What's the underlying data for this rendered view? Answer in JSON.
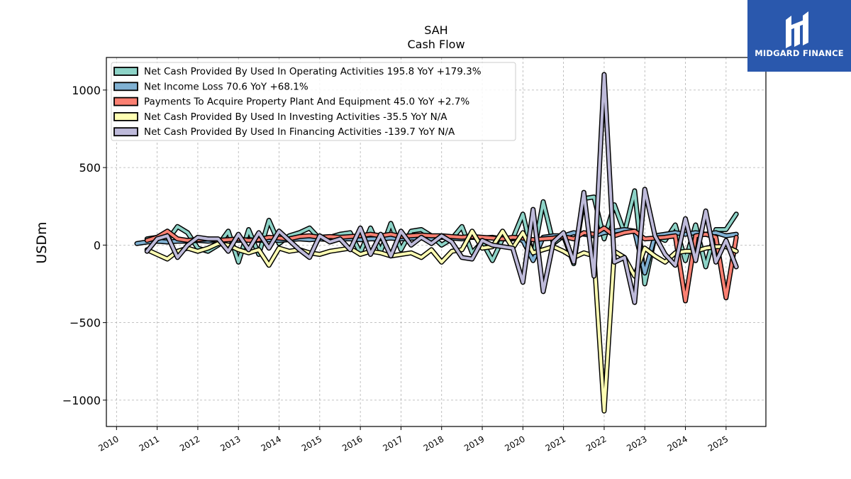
{
  "logo": {
    "text": "MIDGARD FINANCE",
    "color": "#2a58ad"
  },
  "chart_data": {
    "type": "line",
    "title": "SAH",
    "subtitle": "Cash Flow",
    "ylabel": "USDm",
    "xlabel": "",
    "xlim": [
      2009.75,
      2025.98
    ],
    "ylim": [
      -1170,
      1210
    ],
    "yticks": [
      -1000,
      -500,
      0,
      500,
      1000
    ],
    "ytick_labels": [
      "−1000",
      "−500",
      "0",
      "500",
      "1000"
    ],
    "xticks": [
      2010,
      2011,
      2012,
      2013,
      2014,
      2015,
      2016,
      2017,
      2018,
      2019,
      2020,
      2021,
      2022,
      2023,
      2024,
      2025
    ],
    "grid": true,
    "legend_position": "upper-left",
    "series": [
      {
        "name": "Net Cash Provided By Used In Operating Activities  195.8 YoY +179.3%",
        "color": "#8dd3c7",
        "x": [
          2010.75,
          2011.0,
          2011.25,
          2011.5,
          2011.75,
          2012.0,
          2012.25,
          2012.5,
          2012.75,
          2013.0,
          2013.25,
          2013.5,
          2013.75,
          2014.0,
          2014.25,
          2014.5,
          2014.75,
          2015.0,
          2015.25,
          2015.5,
          2015.75,
          2016.0,
          2016.25,
          2016.5,
          2016.75,
          2017.0,
          2017.25,
          2017.5,
          2017.75,
          2018.0,
          2018.25,
          2018.5,
          2018.75,
          2019.0,
          2019.25,
          2019.5,
          2019.75,
          2020.0,
          2020.25,
          2020.5,
          2020.75,
          2021.0,
          2021.25,
          2021.5,
          2021.75,
          2022.0,
          2022.25,
          2022.5,
          2022.75,
          2023.0,
          2023.25,
          2023.5,
          2023.75,
          2024.0,
          2024.25,
          2024.5,
          2024.75,
          2025.0,
          2025.25
        ],
        "y": [
          40,
          50,
          30,
          120,
          80,
          -20,
          -40,
          0,
          90,
          -110,
          100,
          -60,
          160,
          10,
          60,
          80,
          110,
          40,
          50,
          70,
          80,
          -50,
          110,
          -40,
          140,
          -30,
          90,
          100,
          60,
          0,
          40,
          120,
          -50,
          20,
          -100,
          40,
          40,
          200,
          -80,
          280,
          10,
          60,
          -120,
          300,
          310,
          40,
          260,
          80,
          350,
          -250,
          60,
          30,
          130,
          -100,
          130,
          -140,
          100,
          100,
          200
        ]
      },
      {
        "name": "Net Income Loss  70.6 YoY +68.1%",
        "color": "#80b1d3",
        "x": [
          2010.5,
          2010.75,
          2011.0,
          2011.25,
          2011.5,
          2011.75,
          2012.0,
          2012.25,
          2012.5,
          2012.75,
          2013.0,
          2013.25,
          2013.5,
          2013.75,
          2014.0,
          2014.25,
          2014.5,
          2014.75,
          2015.0,
          2015.25,
          2015.5,
          2015.75,
          2016.0,
          2016.25,
          2016.5,
          2016.75,
          2017.0,
          2017.25,
          2017.5,
          2017.75,
          2018.0,
          2018.25,
          2018.5,
          2018.75,
          2019.0,
          2019.25,
          2019.5,
          2019.75,
          2020.0,
          2020.25,
          2020.5,
          2020.75,
          2021.0,
          2021.25,
          2021.5,
          2021.75,
          2022.0,
          2022.25,
          2022.5,
          2022.75,
          2023.0,
          2023.25,
          2023.5,
          2023.75,
          2024.0,
          2024.25,
          2024.5,
          2024.75,
          2025.0,
          2025.25
        ],
        "y": [
          10,
          20,
          25,
          20,
          25,
          25,
          30,
          25,
          30,
          35,
          30,
          35,
          30,
          35,
          30,
          35,
          40,
          35,
          40,
          35,
          40,
          40,
          35,
          40,
          40,
          45,
          40,
          45,
          45,
          40,
          50,
          45,
          40,
          50,
          45,
          50,
          40,
          45,
          30,
          -100,
          50,
          60,
          60,
          80,
          70,
          60,
          80,
          90,
          100,
          90,
          -180,
          60,
          70,
          80,
          70,
          80,
          70,
          80,
          60,
          70
        ]
      },
      {
        "name": "Payments To Acquire Property Plant And Equipment  45.0 YoY +2.7%",
        "color": "#fb8072",
        "x": [
          2010.75,
          2011.0,
          2011.25,
          2011.5,
          2011.75,
          2012.0,
          2012.25,
          2012.5,
          2012.75,
          2013.0,
          2013.25,
          2013.5,
          2013.75,
          2014.0,
          2014.25,
          2014.5,
          2014.75,
          2015.0,
          2015.25,
          2015.5,
          2015.75,
          2016.0,
          2016.25,
          2016.5,
          2016.75,
          2017.0,
          2017.25,
          2017.5,
          2017.75,
          2018.0,
          2018.25,
          2018.5,
          2018.75,
          2019.0,
          2019.25,
          2019.5,
          2019.75,
          2020.0,
          2020.25,
          2020.5,
          2020.75,
          2021.0,
          2021.25,
          2021.5,
          2021.75,
          2022.0,
          2022.25,
          2022.5,
          2022.75,
          2023.0,
          2023.25,
          2023.5,
          2023.75,
          2024.0,
          2024.25,
          2024.5,
          2024.75,
          2025.0,
          2025.25
        ],
        "y": [
          30,
          50,
          90,
          40,
          30,
          35,
          40,
          30,
          35,
          40,
          30,
          35,
          50,
          45,
          40,
          55,
          60,
          50,
          55,
          50,
          55,
          60,
          70,
          60,
          70,
          55,
          60,
          65,
          60,
          60,
          55,
          50,
          55,
          50,
          45,
          40,
          50,
          45,
          35,
          40,
          45,
          55,
          40,
          80,
          70,
          110,
          60,
          80,
          90,
          40,
          45,
          50,
          60,
          -360,
          60,
          70,
          50,
          -340,
          50
        ]
      },
      {
        "name": "Net Cash Provided By Used In Investing Activities  -35.5 YoY N/A",
        "color": "#ffffb3",
        "x": [
          2010.75,
          2011.0,
          2011.25,
          2011.5,
          2011.75,
          2012.0,
          2012.25,
          2012.5,
          2012.75,
          2013.0,
          2013.25,
          2013.5,
          2013.75,
          2014.0,
          2014.25,
          2014.5,
          2014.75,
          2015.0,
          2015.25,
          2015.5,
          2015.75,
          2016.0,
          2016.25,
          2016.5,
          2016.75,
          2017.0,
          2017.25,
          2017.5,
          2017.75,
          2018.0,
          2018.25,
          2018.5,
          2018.75,
          2019.0,
          2019.25,
          2019.5,
          2019.75,
          2020.0,
          2020.25,
          2020.5,
          2020.75,
          2021.0,
          2021.25,
          2021.5,
          2021.75,
          2022.0,
          2022.25,
          2022.5,
          2022.75,
          2023.0,
          2023.25,
          2023.5,
          2023.75,
          2024.0,
          2024.25,
          2024.5,
          2024.75,
          2025.0,
          2025.25
        ],
        "y": [
          -30,
          -60,
          -90,
          -40,
          -20,
          -40,
          -20,
          10,
          0,
          -30,
          -50,
          -30,
          -130,
          -20,
          -40,
          -30,
          -50,
          -60,
          -40,
          -30,
          -20,
          -60,
          -40,
          -50,
          -70,
          -60,
          -50,
          -80,
          -30,
          -110,
          -40,
          -30,
          90,
          -20,
          -10,
          90,
          -20,
          80,
          -50,
          -30,
          -10,
          -40,
          -80,
          -50,
          -70,
          -1070,
          -40,
          -80,
          -200,
          -20,
          -70,
          -110,
          -50,
          -40,
          -40,
          -20,
          -10,
          -10,
          -40
        ]
      },
      {
        "name": "Net Cash Provided By Used In Financing Activities  -139.7 YoY N/A",
        "color": "#bebada",
        "x": [
          2010.75,
          2011.0,
          2011.25,
          2011.5,
          2011.75,
          2012.0,
          2012.25,
          2012.5,
          2012.75,
          2013.0,
          2013.25,
          2013.5,
          2013.75,
          2014.0,
          2014.25,
          2014.5,
          2014.75,
          2015.0,
          2015.25,
          2015.5,
          2015.75,
          2016.0,
          2016.25,
          2016.5,
          2016.75,
          2017.0,
          2017.25,
          2017.5,
          2017.75,
          2018.0,
          2018.25,
          2018.5,
          2018.75,
          2019.0,
          2019.25,
          2019.5,
          2019.75,
          2020.0,
          2020.25,
          2020.5,
          2020.75,
          2021.0,
          2021.25,
          2021.5,
          2021.75,
          2022.0,
          2022.25,
          2022.5,
          2022.75,
          2023.0,
          2023.25,
          2023.5,
          2023.75,
          2024.0,
          2024.25,
          2024.5,
          2024.75,
          2025.0,
          2025.25
        ],
        "y": [
          -40,
          40,
          60,
          -80,
          0,
          50,
          40,
          40,
          -40,
          70,
          -30,
          80,
          -20,
          90,
          30,
          -30,
          -80,
          60,
          20,
          40,
          -30,
          110,
          -60,
          70,
          -70,
          90,
          0,
          50,
          10,
          60,
          20,
          -80,
          -90,
          30,
          0,
          -10,
          -20,
          -240,
          230,
          -300,
          20,
          80,
          -110,
          340,
          -200,
          1100,
          -110,
          -80,
          -370,
          360,
          60,
          -60,
          -130,
          170,
          -100,
          220,
          -110,
          30,
          -140
        ]
      }
    ]
  }
}
